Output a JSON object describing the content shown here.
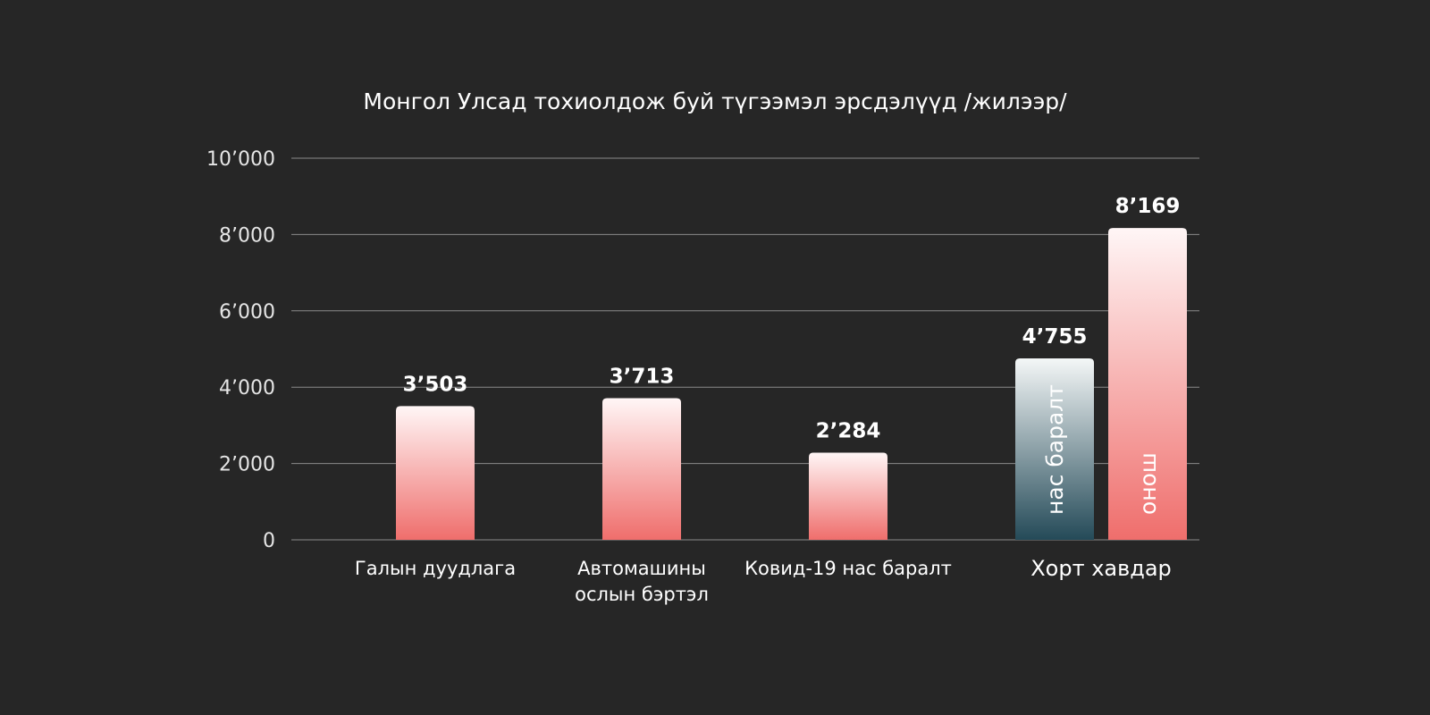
{
  "chart_data": {
    "type": "bar",
    "title": "Монгол Улсад тохиолдож буй түгээмэл эрсдэлүүд /жилээр/",
    "xlabel": "",
    "ylabel": "",
    "ylim": [
      0,
      10000
    ],
    "yticks": [
      0,
      2000,
      4000,
      6000,
      8000,
      10000
    ],
    "ytick_labels": [
      "0",
      "2’000",
      "4’000",
      "6’000",
      "8’000",
      "10’000"
    ],
    "grid": true,
    "categories": [
      {
        "label_lines": [
          "Галын дуудлага"
        ],
        "bars": [
          {
            "value": 3503,
            "value_label": "3’503",
            "inner_label": "",
            "style": "red"
          }
        ]
      },
      {
        "label_lines": [
          "Автомашины",
          "ослын бэртэл"
        ],
        "bars": [
          {
            "value": 3713,
            "value_label": "3’713",
            "inner_label": "",
            "style": "red"
          }
        ]
      },
      {
        "label_lines": [
          "Ковид-19 нас баралт"
        ],
        "bars": [
          {
            "value": 2284,
            "value_label": "2’284",
            "inner_label": "",
            "style": "red"
          }
        ]
      },
      {
        "label_lines": [
          "Хорт хавдар"
        ],
        "bars": [
          {
            "value": 4755,
            "value_label": "4’755",
            "inner_label": "нас баралт",
            "style": "teal"
          },
          {
            "value": 8169,
            "value_label": "8’169",
            "inner_label": "онош",
            "style": "red"
          }
        ]
      }
    ],
    "colors": {
      "background": "#262626",
      "red_bottom": "#ef6e6c",
      "red_top": "#fff6f6",
      "teal_bottom": "#244a58",
      "teal_top": "#f4f7f7",
      "grid": "#8a8a8a",
      "text": "#ffffff"
    }
  }
}
